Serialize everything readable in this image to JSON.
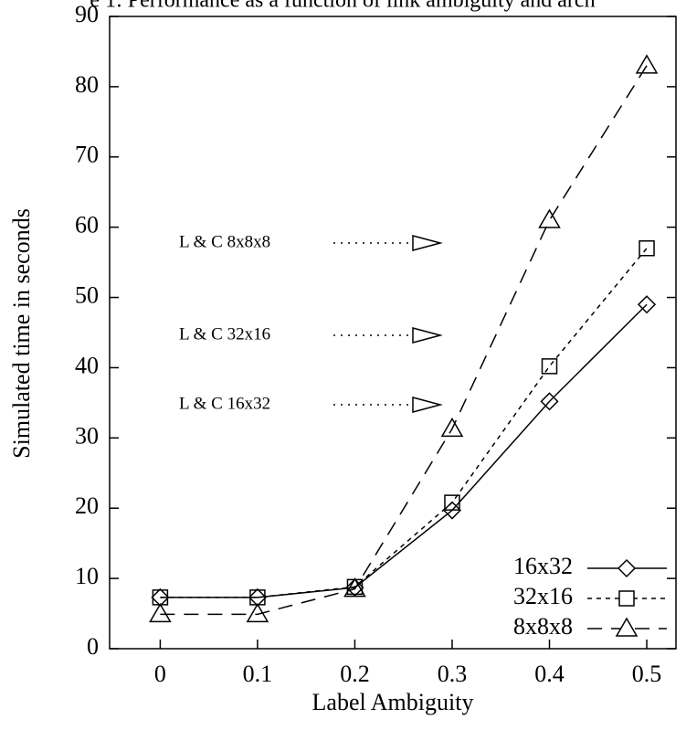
{
  "chart_data": {
    "type": "line",
    "title": "e 1: Performance as a function of link ambiguity and arch",
    "x_label": "Label Ambiguity",
    "y_label": "Simulated time in seconds",
    "x": [
      0,
      0.1,
      0.2,
      0.3,
      0.4,
      0.5
    ],
    "series": [
      {
        "name": "16x32",
        "color": "#000000",
        "marker": "diamond",
        "dash": "solid",
        "values": [
          7.3,
          7.3,
          8.7,
          19.7,
          35.2,
          49
        ]
      },
      {
        "name": "32x16",
        "color": "#000000",
        "marker": "square",
        "dash": "short",
        "values": [
          7.3,
          7.3,
          8.8,
          20.8,
          40.2,
          57
        ]
      },
      {
        "name": "8x8x8",
        "color": "#000000",
        "marker": "triangle",
        "dash": "long",
        "values": [
          4.9,
          4.9,
          8.5,
          31.3,
          61,
          83
        ]
      }
    ],
    "annotations": [
      "L & C 8x8x8",
      "L & C 32x16",
      "L & C 16x32"
    ],
    "xlim": [
      -0.052,
      0.53
    ],
    "xticks": [
      0,
      0.1,
      0.2,
      0.3,
      0.4,
      0.5
    ],
    "ylim": [
      0,
      90
    ],
    "yticks": [
      0,
      10,
      20,
      30,
      40,
      50,
      60,
      70,
      80,
      90
    ],
    "grid": false,
    "legend": "lower right"
  }
}
